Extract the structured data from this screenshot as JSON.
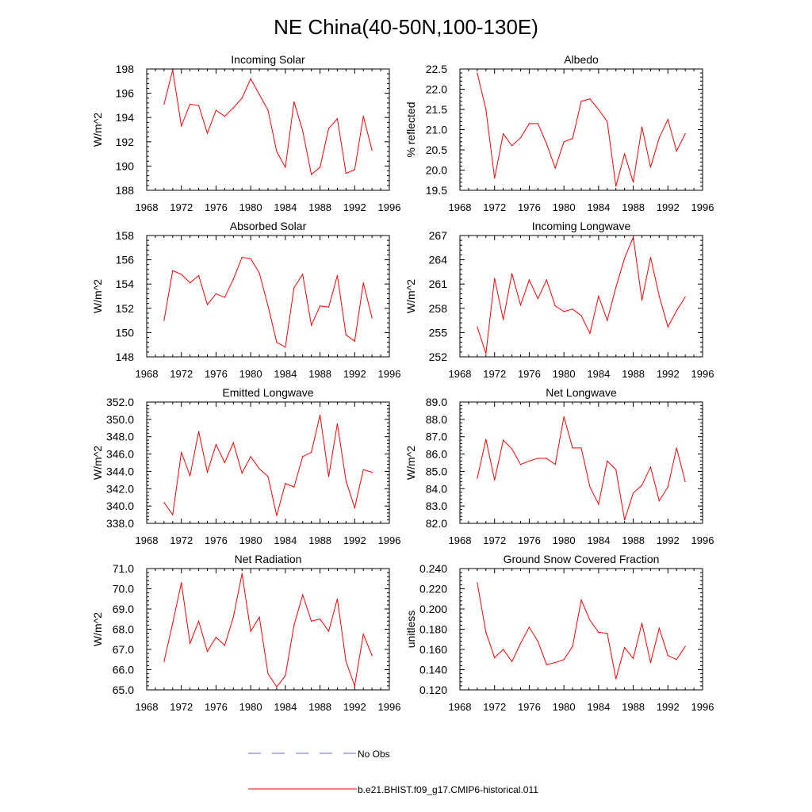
{
  "title": "NE China(40-50N,100-130E)",
  "legend": {
    "items": [
      {
        "label": "No Obs",
        "style": "dashed",
        "color": "#6a6ac8"
      },
      {
        "label": "b.e21.BHIST.f09_g17.CMIP6-historical.011",
        "style": "solid",
        "color": "#ff0000"
      }
    ]
  },
  "colors": {
    "series": "#ff0000",
    "obs": "#6a6ac8",
    "axis": "#000000"
  },
  "chart_data": [
    {
      "type": "line",
      "title": "Incoming Solar",
      "xlabel": "",
      "ylabel": "W/m^2",
      "xlim": [
        1968,
        1996
      ],
      "xticks": [
        1968,
        1972,
        1976,
        1980,
        1984,
        1988,
        1992,
        1996
      ],
      "ylim": [
        188,
        198
      ],
      "yticks": [
        "188",
        "190",
        "192",
        "194",
        "196",
        "198"
      ],
      "x": [
        1970,
        1971,
        1972,
        1973,
        1974,
        1975,
        1976,
        1977,
        1978,
        1979,
        1980,
        1981,
        1982,
        1983,
        1984,
        1985,
        1986,
        1987,
        1988,
        1989,
        1990,
        1991,
        1992,
        1993,
        1994
      ],
      "series": [
        {
          "values": [
            195.1,
            197.9,
            193.3,
            195.1,
            195.0,
            192.7,
            194.6,
            194.1,
            194.8,
            195.6,
            197.2,
            195.9,
            194.6,
            191.2,
            189.9,
            195.3,
            192.9,
            189.3,
            189.9,
            193.1,
            193.9,
            189.4,
            189.7,
            194.1,
            191.3
          ]
        }
      ]
    },
    {
      "type": "line",
      "title": "Albedo",
      "xlabel": "",
      "ylabel": "% reflected",
      "xlim": [
        1968,
        1996
      ],
      "xticks": [
        1968,
        1972,
        1976,
        1980,
        1984,
        1988,
        1992,
        1996
      ],
      "ylim": [
        19.5,
        22.5
      ],
      "yticks": [
        "19.5",
        "20.0",
        "20.5",
        "21.0",
        "21.5",
        "22.0",
        "22.5"
      ],
      "x": [
        1970,
        1971,
        1972,
        1973,
        1974,
        1975,
        1976,
        1977,
        1978,
        1979,
        1980,
        1981,
        1982,
        1983,
        1984,
        1985,
        1986,
        1987,
        1988,
        1989,
        1990,
        1991,
        1992,
        1993,
        1994
      ],
      "series": [
        {
          "values": [
            22.4,
            21.5,
            19.8,
            20.9,
            20.6,
            20.8,
            21.15,
            21.15,
            20.65,
            20.05,
            20.7,
            20.78,
            21.7,
            21.76,
            21.5,
            21.2,
            19.6,
            20.4,
            19.7,
            21.07,
            20.07,
            20.8,
            21.25,
            20.47,
            20.9
          ]
        }
      ]
    },
    {
      "type": "line",
      "title": "Absorbed Solar",
      "xlabel": "",
      "ylabel": "W/m^2",
      "xlim": [
        1968,
        1996
      ],
      "xticks": [
        1968,
        1972,
        1976,
        1980,
        1984,
        1988,
        1992,
        1996
      ],
      "ylim": [
        148,
        158
      ],
      "yticks": [
        "148",
        "150",
        "152",
        "154",
        "156",
        "158"
      ],
      "x": [
        1970,
        1971,
        1972,
        1973,
        1974,
        1975,
        1976,
        1977,
        1978,
        1979,
        1980,
        1981,
        1982,
        1983,
        1984,
        1985,
        1986,
        1987,
        1988,
        1989,
        1990,
        1991,
        1992,
        1993,
        1994
      ],
      "series": [
        {
          "values": [
            151.0,
            155.1,
            154.8,
            154.1,
            154.7,
            152.3,
            153.2,
            152.9,
            154.4,
            156.2,
            156.1,
            154.9,
            152.2,
            149.2,
            148.8,
            153.7,
            154.8,
            150.6,
            152.2,
            152.1,
            154.7,
            149.8,
            149.3,
            154.1,
            151.2
          ]
        }
      ]
    },
    {
      "type": "line",
      "title": "Incoming Longwave",
      "xlabel": "",
      "ylabel": "W/m^2",
      "xlim": [
        1968,
        1996
      ],
      "xticks": [
        1968,
        1972,
        1976,
        1980,
        1984,
        1988,
        1992,
        1996
      ],
      "ylim": [
        252,
        267
      ],
      "yticks": [
        "252",
        "255",
        "258",
        "261",
        "264",
        "267"
      ],
      "x": [
        1970,
        1971,
        1972,
        1973,
        1974,
        1975,
        1976,
        1977,
        1978,
        1979,
        1980,
        1981,
        1982,
        1983,
        1984,
        1985,
        1986,
        1987,
        1988,
        1989,
        1990,
        1991,
        1992,
        1993,
        1994
      ],
      "series": [
        {
          "values": [
            255.7,
            252.4,
            261.7,
            256.6,
            262.3,
            258.4,
            261.5,
            259.2,
            261.5,
            258.3,
            257.6,
            257.9,
            257.1,
            254.9,
            259.5,
            256.5,
            260.6,
            264.2,
            266.8,
            259.0,
            264.3,
            259.5,
            255.7,
            257.7,
            259.4
          ]
        }
      ]
    },
    {
      "type": "line",
      "title": "Emitted Longwave",
      "xlabel": "",
      "ylabel": "W/m^2",
      "xlim": [
        1968,
        1996
      ],
      "xticks": [
        1968,
        1972,
        1976,
        1980,
        1984,
        1988,
        1992,
        1996
      ],
      "ylim": [
        338,
        352
      ],
      "yticks": [
        "338.0",
        "340.0",
        "342.0",
        "344.0",
        "346.0",
        "348.0",
        "350.0",
        "352.0"
      ],
      "x": [
        1970,
        1971,
        1972,
        1973,
        1974,
        1975,
        1976,
        1977,
        1978,
        1979,
        1980,
        1981,
        1982,
        1983,
        1984,
        1985,
        1986,
        1987,
        1988,
        1989,
        1990,
        1991,
        1992,
        1993,
        1994
      ],
      "series": [
        {
          "values": [
            340.4,
            339.0,
            346.2,
            343.5,
            348.6,
            343.9,
            347.1,
            345.0,
            347.3,
            343.8,
            345.7,
            344.3,
            343.4,
            338.9,
            342.6,
            342.2,
            345.7,
            346.2,
            350.5,
            343.4,
            349.5,
            342.9,
            339.8,
            344.2,
            343.9
          ]
        }
      ]
    },
    {
      "type": "line",
      "title": "Net Longwave",
      "xlabel": "",
      "ylabel": "W/m^2",
      "xlim": [
        1968,
        1996
      ],
      "xticks": [
        1968,
        1972,
        1976,
        1980,
        1984,
        1988,
        1992,
        1996
      ],
      "ylim": [
        82,
        89
      ],
      "yticks": [
        "82.0",
        "83.0",
        "84.0",
        "85.0",
        "86.0",
        "87.0",
        "88.0",
        "89.0"
      ],
      "x": [
        1970,
        1971,
        1972,
        1973,
        1974,
        1975,
        1976,
        1977,
        1978,
        1979,
        1980,
        1981,
        1982,
        1983,
        1984,
        1985,
        1986,
        1987,
        1988,
        1989,
        1990,
        1991,
        1992,
        1993,
        1994
      ],
      "series": [
        {
          "values": [
            84.6,
            86.85,
            84.5,
            86.8,
            86.3,
            85.4,
            85.6,
            85.75,
            85.75,
            85.4,
            88.15,
            86.35,
            86.35,
            84.1,
            83.1,
            85.6,
            85.1,
            82.2,
            83.75,
            84.2,
            85.25,
            83.3,
            84.1,
            86.35,
            84.4
          ]
        }
      ]
    },
    {
      "type": "line",
      "title": "Net Radiation",
      "xlabel": "",
      "ylabel": "W/m^2",
      "xlim": [
        1968,
        1996
      ],
      "xticks": [
        1968,
        1972,
        1976,
        1980,
        1984,
        1988,
        1992,
        1996
      ],
      "ylim": [
        65,
        71
      ],
      "yticks": [
        "65.0",
        "66.0",
        "67.0",
        "68.0",
        "69.0",
        "70.0",
        "71.0"
      ],
      "x": [
        1970,
        1971,
        1972,
        1973,
        1974,
        1975,
        1976,
        1977,
        1978,
        1979,
        1980,
        1981,
        1982,
        1983,
        1984,
        1985,
        1986,
        1987,
        1988,
        1989,
        1990,
        1991,
        1992,
        1993,
        1994
      ],
      "series": [
        {
          "values": [
            66.4,
            68.3,
            70.3,
            67.3,
            68.4,
            66.9,
            67.6,
            67.2,
            68.6,
            70.75,
            67.9,
            68.6,
            65.8,
            65.15,
            65.7,
            68.2,
            69.7,
            68.4,
            68.5,
            67.9,
            69.5,
            66.4,
            65.2,
            67.75,
            66.7
          ]
        }
      ]
    },
    {
      "type": "line",
      "title": "Ground Snow Covered Fraction",
      "xlabel": "",
      "ylabel": "unitless",
      "xlim": [
        1968,
        1996
      ],
      "xticks": [
        1968,
        1972,
        1976,
        1980,
        1984,
        1988,
        1992,
        1996
      ],
      "ylim": [
        0.12,
        0.24
      ],
      "yticks": [
        "0.120",
        "0.140",
        "0.160",
        "0.180",
        "0.200",
        "0.220",
        "0.240"
      ],
      "x": [
        1970,
        1971,
        1972,
        1973,
        1974,
        1975,
        1976,
        1977,
        1978,
        1979,
        1980,
        1981,
        1982,
        1983,
        1984,
        1985,
        1986,
        1987,
        1988,
        1989,
        1990,
        1991,
        1992,
        1993,
        1994
      ],
      "series": [
        {
          "values": [
            0.226,
            0.177,
            0.152,
            0.16,
            0.148,
            0.166,
            0.182,
            0.168,
            0.145,
            0.147,
            0.15,
            0.163,
            0.209,
            0.189,
            0.177,
            0.176,
            0.131,
            0.162,
            0.151,
            0.186,
            0.147,
            0.181,
            0.154,
            0.15,
            0.163
          ]
        }
      ]
    }
  ]
}
